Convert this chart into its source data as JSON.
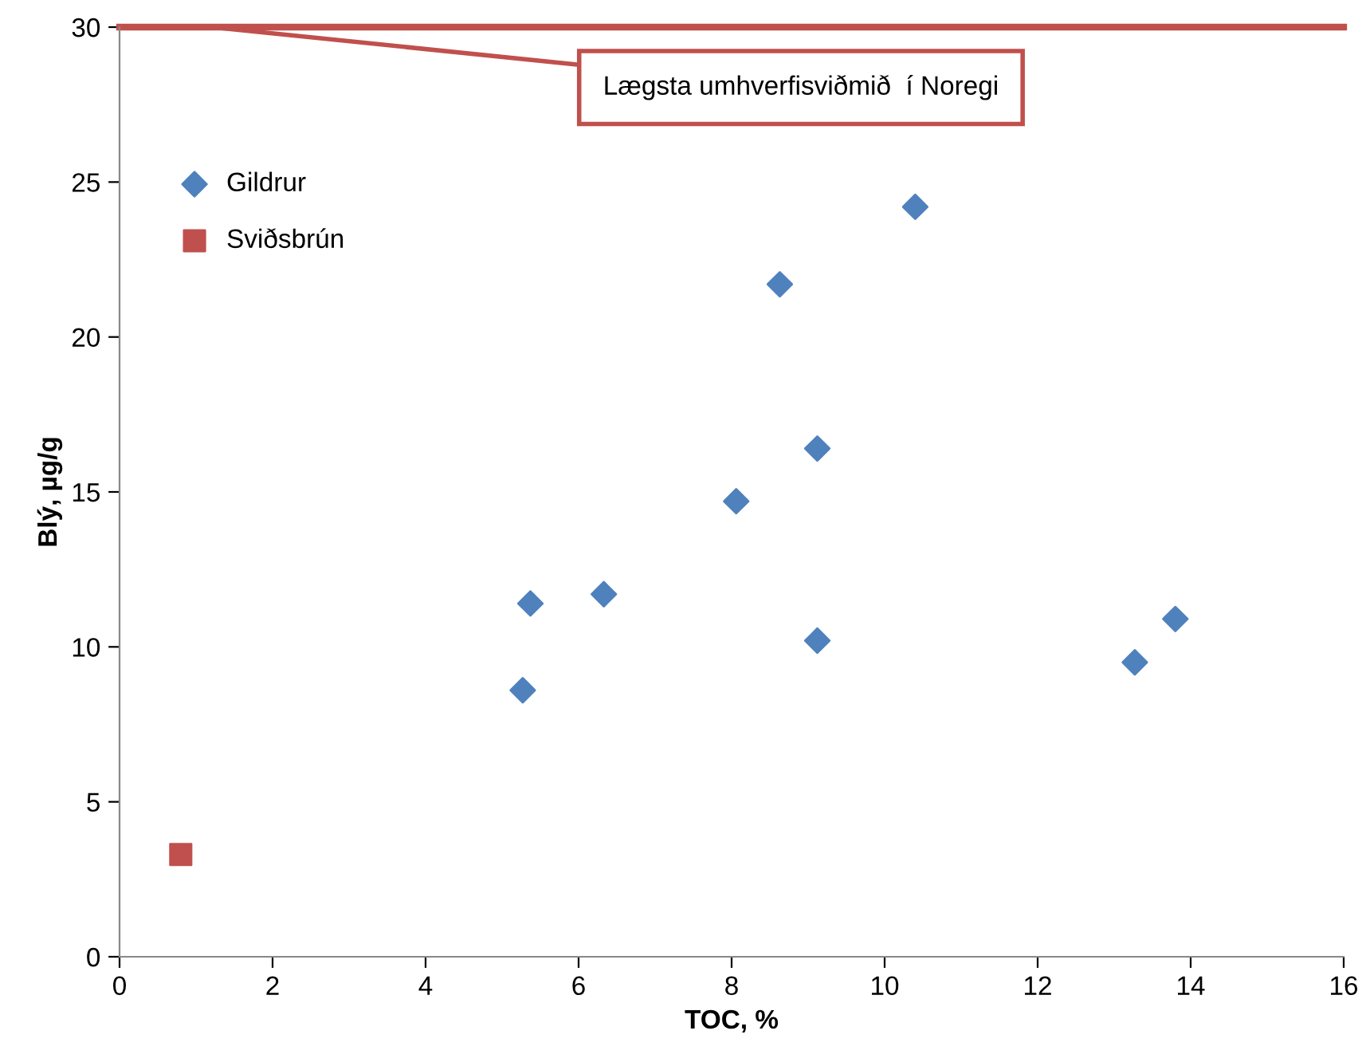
{
  "chart_data": {
    "type": "scatter",
    "xlabel": "TOC, %",
    "ylabel": "Blý, µg/g",
    "xlim": [
      0,
      16
    ],
    "ylim": [
      0,
      30
    ],
    "xticks": [
      0,
      2,
      4,
      6,
      8,
      10,
      12,
      14,
      16
    ],
    "yticks": [
      0,
      5,
      10,
      15,
      20,
      25,
      30
    ],
    "grid": false,
    "legend": "top left",
    "series": [
      {
        "name": "Gildrur",
        "color": "#4f81bd",
        "marker": "diamond",
        "x": [
          5.37,
          5.27,
          6.33,
          8.06,
          8.63,
          9.12,
          9.12,
          10.4,
          13.27,
          13.8
        ],
        "values": [
          11.4,
          8.6,
          11.7,
          14.7,
          21.7,
          16.4,
          10.2,
          24.2,
          9.5,
          10.9
        ]
      },
      {
        "name": "Sviðsbrún",
        "color": "#c0504d",
        "marker": "square",
        "x": [
          0.8
        ],
        "values": [
          3.3
        ]
      }
    ],
    "ref_lines": [
      {
        "axis": "y",
        "value": 30,
        "color": "#c0504d",
        "line_style": "solid"
      }
    ],
    "annotations": [
      {
        "text": "Lægsta umhverfisviðmið  í Noregi",
        "x": 1.2,
        "y": 30
      }
    ]
  }
}
